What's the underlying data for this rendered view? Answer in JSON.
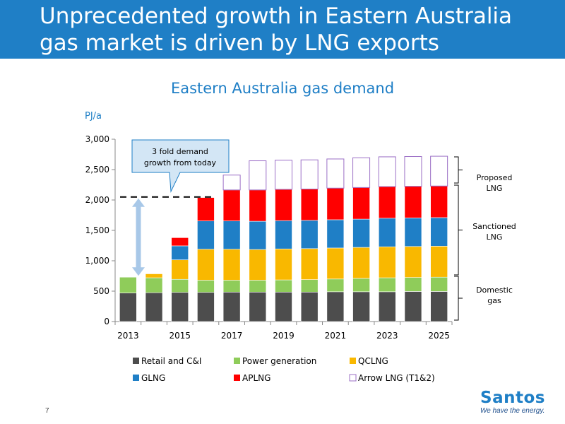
{
  "slide": {
    "title": "Unprecedented growth in Eastern Australia gas market is driven by LNG exports",
    "slide_number": "7",
    "logo_name": "Santos",
    "logo_tagline": "We have the energy.",
    "header_color": "#1f7fc6"
  },
  "chart_data": {
    "type": "bar",
    "stacked": true,
    "title": "Eastern Australia gas demand",
    "ylabel": "PJ/a",
    "xlabel": "",
    "ylim": [
      0,
      3000
    ],
    "yticks": [
      0,
      500,
      1000,
      1500,
      2000,
      2500,
      3000
    ],
    "ytick_labels": [
      "0",
      "500",
      "1,000",
      "1,500",
      "2,000",
      "2,500",
      "3,000"
    ],
    "categories": [
      "2013",
      "2014",
      "2015",
      "2016",
      "2017",
      "2018",
      "2019",
      "2020",
      "2021",
      "2022",
      "2023",
      "2024",
      "2025"
    ],
    "xtick_labels": [
      "2013",
      "",
      "2015",
      "",
      "2017",
      "",
      "2019",
      "",
      "2021",
      "",
      "2023",
      "",
      "2025"
    ],
    "grid": false,
    "legend_position": "bottom",
    "series": [
      {
        "name": "Retail and C&I",
        "color": "#4d4d4d",
        "outline_only": false,
        "values": [
          470,
          475,
          480,
          480,
          485,
          485,
          485,
          485,
          490,
          490,
          490,
          495,
          495
        ]
      },
      {
        "name": "Power generation",
        "color": "#8fcc5a",
        "outline_only": false,
        "values": [
          260,
          245,
          215,
          200,
          195,
          195,
          200,
          205,
          210,
          220,
          230,
          230,
          235
        ]
      },
      {
        "name": "QCLNG",
        "color": "#f9b800",
        "outline_only": false,
        "values": [
          0,
          65,
          320,
          510,
          510,
          505,
          510,
          510,
          510,
          510,
          510,
          510,
          510
        ]
      },
      {
        "name": "GLNG",
        "color": "#1f7fc6",
        "outline_only": false,
        "values": [
          0,
          0,
          230,
          465,
          465,
          465,
          465,
          465,
          465,
          465,
          470,
          470,
          470
        ]
      },
      {
        "name": "APLNG",
        "color": "#ff0000",
        "outline_only": false,
        "values": [
          0,
          0,
          135,
          385,
          510,
          515,
          515,
          515,
          520,
          520,
          520,
          520,
          520
        ]
      },
      {
        "name": "Arrow LNG (T1&2)",
        "color": "#9b6fc6",
        "outline_only": true,
        "values": [
          0,
          0,
          0,
          0,
          245,
          480,
          480,
          480,
          480,
          490,
          490,
          490,
          490
        ]
      }
    ],
    "annotations": {
      "callout": "3 fold demand growth from today",
      "dashed_level": 2050,
      "brackets": [
        {
          "label_line1": "Proposed",
          "label_line2": "LNG"
        },
        {
          "label_line1": "Sanctioned",
          "label_line2": "LNG"
        },
        {
          "label_line1": "Domestic",
          "label_line2": "gas"
        }
      ]
    }
  }
}
